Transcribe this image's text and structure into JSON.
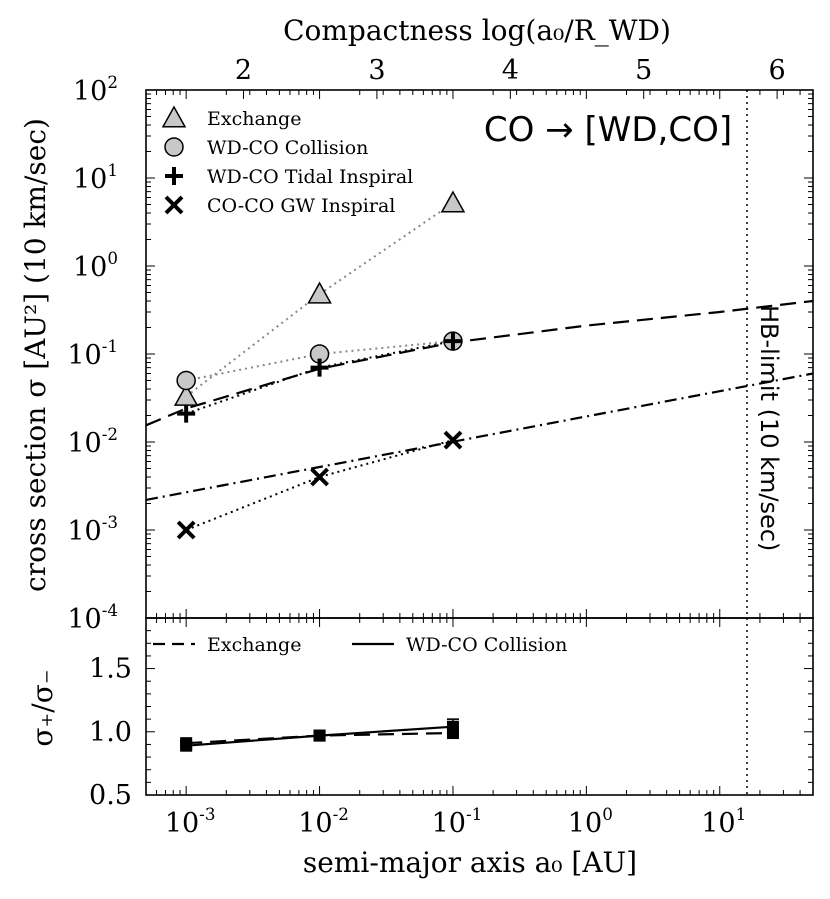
{
  "chart_data": [
    {
      "type": "scatter",
      "panel": "top",
      "top_axis_label": "Compactness log(a₀/R_WD)",
      "top_ticks": [
        "2",
        "3",
        "4",
        "5",
        "6"
      ],
      "ylabel": "cross section σ [AU²] (10 km/sec)",
      "x_scale": "log",
      "xlim": [
        0.0005,
        50
      ],
      "y_scale": "log",
      "ylim": [
        0.0001,
        100
      ],
      "y_ticks": [
        {
          "base": "10",
          "exp": "2"
        },
        {
          "base": "10",
          "exp": "1"
        },
        {
          "base": "10",
          "exp": "0"
        },
        {
          "base": "10",
          "exp": "-1"
        },
        {
          "base": "10",
          "exp": "-2"
        },
        {
          "base": "10",
          "exp": "-3"
        },
        {
          "base": "10",
          "exp": "-4"
        }
      ],
      "annotation": "CO → [WD,CO]",
      "hb_limit_label": "HB-limit (10 km/sec)",
      "hb_limit_x": 16,
      "series": [
        {
          "name": "Exchange",
          "marker": "triangle",
          "x": [
            0.001,
            0.01,
            0.1
          ],
          "y": [
            0.033,
            0.48,
            5.2
          ]
        },
        {
          "name": "WD-CO Collision",
          "marker": "circle",
          "x": [
            0.001,
            0.01,
            0.1
          ],
          "y": [
            0.05,
            0.1,
            0.14
          ]
        },
        {
          "name": "WD-CO Tidal Inspiral",
          "marker": "plus",
          "x": [
            0.001,
            0.01,
            0.1
          ],
          "y": [
            0.021,
            0.07,
            0.14
          ]
        },
        {
          "name": "CO-CO GW Inspiral",
          "marker": "x",
          "x": [
            0.001,
            0.01,
            0.1
          ],
          "y": [
            0.001,
            0.004,
            0.0105
          ]
        }
      ],
      "fit_lines": [
        {
          "style": "dashed",
          "x": [
            0.0005,
            0.001,
            0.01,
            0.1,
            1,
            10,
            50
          ],
          "y": [
            0.0155,
            0.024,
            0.068,
            0.135,
            0.21,
            0.3,
            0.4
          ]
        },
        {
          "style": "dashdot",
          "x": [
            0.0005,
            50
          ],
          "y": [
            0.0022,
            0.06
          ]
        }
      ]
    },
    {
      "type": "line",
      "panel": "bottom",
      "xlabel": "semi-major axis a₀ [AU]",
      "ylabel": "σ₊/σ₋",
      "x_scale": "log",
      "xlim": [
        0.0005,
        50
      ],
      "ylim": [
        0.5,
        1.9
      ],
      "y_ticks": [
        "0.5",
        "1.0",
        "1.5"
      ],
      "x_ticks": [
        {
          "base": "10",
          "exp": "-3"
        },
        {
          "base": "10",
          "exp": "-2"
        },
        {
          "base": "10",
          "exp": "-1"
        },
        {
          "base": "10",
          "exp": "0"
        },
        {
          "base": "10",
          "exp": "1"
        }
      ],
      "series": [
        {
          "name": "Exchange",
          "style": "dashed",
          "x": [
            0.001,
            0.01,
            0.1
          ],
          "y": [
            0.91,
            0.97,
            0.99
          ]
        },
        {
          "name": "WD-CO Collision",
          "style": "solid",
          "x": [
            0.001,
            0.01,
            0.1
          ],
          "y": [
            0.89,
            0.97,
            1.04
          ],
          "err": [
            0.03,
            0.03,
            0.06
          ]
        }
      ]
    }
  ]
}
